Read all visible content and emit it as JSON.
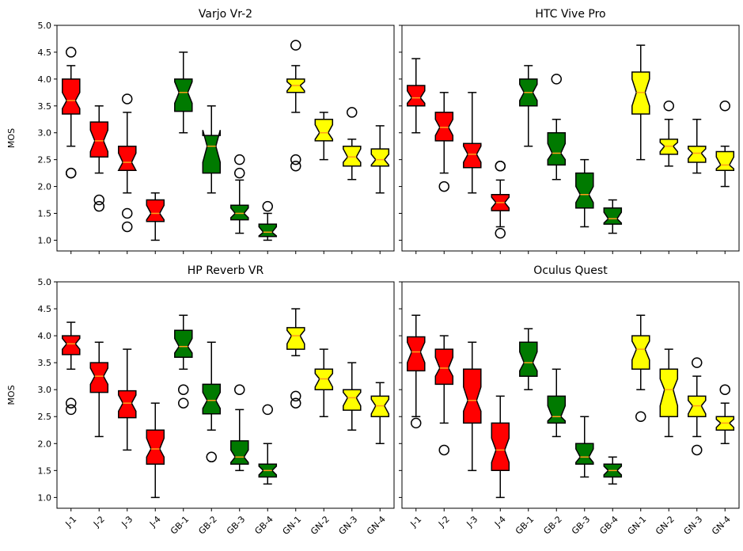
{
  "chart_data": {
    "type": "boxplot",
    "shared_ylabel": "MOS",
    "ylim": [
      0.8,
      5.0
    ],
    "yticks": [
      "1.0",
      "1.5",
      "2.0",
      "2.5",
      "3.0",
      "3.5",
      "4.0",
      "4.5",
      "5.0"
    ],
    "ytick_values": [
      1.0,
      1.5,
      2.0,
      2.5,
      3.0,
      3.5,
      4.0,
      4.5,
      5.0
    ],
    "categories": [
      "J-1",
      "J-2",
      "J-3",
      "J-4",
      "GB-1",
      "GB-2",
      "GB-3",
      "GB-4",
      "GN-1",
      "GN-2",
      "GN-3",
      "GN-4"
    ],
    "category_colors": [
      "#ff0000",
      "#ff0000",
      "#ff0000",
      "#ff0000",
      "#007a00",
      "#007a00",
      "#007a00",
      "#007a00",
      "#ffff00",
      "#ffff00",
      "#ffff00",
      "#ffff00"
    ],
    "median_color": "#ff9f1a",
    "panels": [
      {
        "title": "Varjo Vr-2",
        "boxes": [
          {
            "min": 2.75,
            "q1": 3.35,
            "median": 3.6,
            "q3": 4.0,
            "max": 4.25,
            "nlo": 3.45,
            "nhi": 3.75,
            "fliers": [
              4.5,
              2.25,
              2.25
            ]
          },
          {
            "min": 2.25,
            "q1": 2.55,
            "median": 2.85,
            "q3": 3.2,
            "max": 3.5,
            "nlo": 2.65,
            "nhi": 3.05,
            "fliers": [
              1.75,
              1.63
            ]
          },
          {
            "min": 1.88,
            "q1": 2.3,
            "median": 2.45,
            "q3": 2.75,
            "max": 3.38,
            "nlo": 2.3,
            "nhi": 2.62,
            "fliers": [
              3.63,
              1.5,
              1.25
            ]
          },
          {
            "min": 1.0,
            "q1": 1.35,
            "median": 1.5,
            "q3": 1.75,
            "max": 1.88,
            "nlo": 1.38,
            "nhi": 1.65,
            "fliers": []
          },
          {
            "min": 3.0,
            "q1": 3.4,
            "median": 3.75,
            "q3": 4.0,
            "max": 4.5,
            "nlo": 3.55,
            "nhi": 3.95,
            "fliers": []
          },
          {
            "min": 1.88,
            "q1": 2.25,
            "median": 2.75,
            "q3": 2.95,
            "max": 3.5,
            "nlo": 2.45,
            "nhi": 3.05,
            "fliers": []
          },
          {
            "min": 1.13,
            "q1": 1.38,
            "median": 1.5,
            "q3": 1.65,
            "max": 2.12,
            "nlo": 1.42,
            "nhi": 1.6,
            "fliers": [
              2.5,
              2.25
            ]
          },
          {
            "min": 1.0,
            "q1": 1.07,
            "median": 1.15,
            "q3": 1.3,
            "max": 1.5,
            "nlo": 1.08,
            "nhi": 1.25,
            "fliers": [
              1.63
            ]
          },
          {
            "min": 3.38,
            "q1": 3.75,
            "median": 3.88,
            "q3": 4.0,
            "max": 4.25,
            "nlo": 3.78,
            "nhi": 3.95,
            "fliers": [
              4.63,
              2.5,
              2.38
            ]
          },
          {
            "min": 2.5,
            "q1": 2.85,
            "median": 3.0,
            "q3": 3.25,
            "max": 3.38,
            "nlo": 2.88,
            "nhi": 3.15,
            "fliers": []
          },
          {
            "min": 2.13,
            "q1": 2.38,
            "median": 2.55,
            "q3": 2.75,
            "max": 2.88,
            "nlo": 2.45,
            "nhi": 2.7,
            "fliers": [
              3.38
            ]
          },
          {
            "min": 1.88,
            "q1": 2.38,
            "median": 2.5,
            "q3": 2.7,
            "max": 3.13,
            "nlo": 2.4,
            "nhi": 2.6,
            "fliers": []
          }
        ]
      },
      {
        "title": "HTC Vive Pro",
        "boxes": [
          {
            "min": 3.0,
            "q1": 3.5,
            "median": 3.65,
            "q3": 3.88,
            "max": 4.38,
            "nlo": 3.55,
            "nhi": 3.78,
            "fliers": []
          },
          {
            "min": 2.25,
            "q1": 2.85,
            "median": 3.1,
            "q3": 3.38,
            "max": 3.75,
            "nlo": 2.95,
            "nhi": 3.25,
            "fliers": [
              2.0
            ]
          },
          {
            "min": 1.88,
            "q1": 2.35,
            "median": 2.6,
            "q3": 2.8,
            "max": 3.75,
            "nlo": 2.45,
            "nhi": 2.75,
            "fliers": []
          },
          {
            "min": 1.25,
            "q1": 1.55,
            "median": 1.7,
            "q3": 1.85,
            "max": 2.12,
            "nlo": 1.6,
            "nhi": 1.8,
            "fliers": [
              2.38,
              2.38,
              1.13
            ]
          },
          {
            "min": 2.75,
            "q1": 3.5,
            "median": 3.75,
            "q3": 4.0,
            "max": 4.25,
            "nlo": 3.6,
            "nhi": 3.9,
            "fliers": []
          },
          {
            "min": 2.13,
            "q1": 2.4,
            "median": 2.62,
            "q3": 3.0,
            "max": 3.25,
            "nlo": 2.5,
            "nhi": 2.8,
            "fliers": [
              4.0
            ]
          },
          {
            "min": 1.25,
            "q1": 1.6,
            "median": 1.85,
            "q3": 2.25,
            "max": 2.5,
            "nlo": 1.7,
            "nhi": 2.0,
            "fliers": []
          },
          {
            "min": 1.13,
            "q1": 1.3,
            "median": 1.4,
            "q3": 1.6,
            "max": 1.75,
            "nlo": 1.32,
            "nhi": 1.52,
            "fliers": []
          },
          {
            "min": 2.5,
            "q1": 3.35,
            "median": 3.75,
            "q3": 4.13,
            "max": 4.63,
            "nlo": 3.5,
            "nhi": 4.0,
            "fliers": []
          },
          {
            "min": 2.38,
            "q1": 2.6,
            "median": 2.75,
            "q3": 2.88,
            "max": 3.25,
            "nlo": 2.65,
            "nhi": 2.82,
            "fliers": [
              3.5
            ]
          },
          {
            "min": 2.25,
            "q1": 2.45,
            "median": 2.62,
            "q3": 2.75,
            "max": 3.25,
            "nlo": 2.52,
            "nhi": 2.7,
            "fliers": []
          },
          {
            "min": 2.0,
            "q1": 2.3,
            "median": 2.4,
            "q3": 2.65,
            "max": 2.75,
            "nlo": 2.33,
            "nhi": 2.55,
            "fliers": [
              3.5
            ]
          }
        ]
      },
      {
        "title": "HP Reverb VR",
        "boxes": [
          {
            "min": 3.38,
            "q1": 3.65,
            "median": 3.85,
            "q3": 4.0,
            "max": 4.25,
            "nlo": 3.75,
            "nhi": 3.95,
            "fliers": [
              2.75,
              2.63
            ]
          },
          {
            "min": 2.13,
            "q1": 2.95,
            "median": 3.25,
            "q3": 3.5,
            "max": 3.88,
            "nlo": 3.1,
            "nhi": 3.4,
            "fliers": []
          },
          {
            "min": 1.88,
            "q1": 2.48,
            "median": 2.75,
            "q3": 2.98,
            "max": 3.75,
            "nlo": 2.6,
            "nhi": 2.9,
            "fliers": []
          },
          {
            "min": 1.0,
            "q1": 1.62,
            "median": 1.9,
            "q3": 2.25,
            "max": 2.75,
            "nlo": 1.75,
            "nhi": 2.1,
            "fliers": []
          },
          {
            "min": 3.38,
            "q1": 3.6,
            "median": 3.8,
            "q3": 4.1,
            "max": 4.38,
            "nlo": 3.68,
            "nhi": 3.95,
            "fliers": [
              3.0,
              2.75
            ]
          },
          {
            "min": 2.25,
            "q1": 2.55,
            "median": 2.8,
            "q3": 3.1,
            "max": 3.88,
            "nlo": 2.65,
            "nhi": 2.95,
            "fliers": [
              1.75
            ]
          },
          {
            "min": 1.5,
            "q1": 1.62,
            "median": 1.75,
            "q3": 2.05,
            "max": 2.63,
            "nlo": 1.65,
            "nhi": 1.88,
            "fliers": [
              3.0
            ]
          },
          {
            "min": 1.25,
            "q1": 1.38,
            "median": 1.5,
            "q3": 1.62,
            "max": 2.0,
            "nlo": 1.42,
            "nhi": 1.58,
            "fliers": [
              2.63
            ]
          },
          {
            "min": 3.63,
            "q1": 3.75,
            "median": 4.0,
            "q3": 4.15,
            "max": 4.5,
            "nlo": 3.85,
            "nhi": 4.1,
            "fliers": [
              2.88,
              2.75
            ]
          },
          {
            "min": 2.5,
            "q1": 3.0,
            "median": 3.2,
            "q3": 3.38,
            "max": 3.75,
            "nlo": 3.05,
            "nhi": 3.3,
            "fliers": []
          },
          {
            "min": 2.25,
            "q1": 2.62,
            "median": 2.85,
            "q3": 3.0,
            "max": 3.5,
            "nlo": 2.7,
            "nhi": 2.95,
            "fliers": []
          },
          {
            "min": 2.0,
            "q1": 2.5,
            "median": 2.7,
            "q3": 2.88,
            "max": 3.13,
            "nlo": 2.55,
            "nhi": 2.82,
            "fliers": []
          }
        ]
      },
      {
        "title": "Oculus Quest",
        "boxes": [
          {
            "min": 2.5,
            "q1": 3.35,
            "median": 3.7,
            "q3": 3.98,
            "max": 4.38,
            "nlo": 3.5,
            "nhi": 3.88,
            "fliers": [
              2.38
            ]
          },
          {
            "min": 2.38,
            "q1": 3.1,
            "median": 3.4,
            "q3": 3.75,
            "max": 4.0,
            "nlo": 3.25,
            "nhi": 3.6,
            "fliers": [
              1.88
            ]
          },
          {
            "min": 1.5,
            "q1": 2.38,
            "median": 2.8,
            "q3": 3.38,
            "max": 3.88,
            "nlo": 2.6,
            "nhi": 3.05,
            "fliers": []
          },
          {
            "min": 1.0,
            "q1": 1.5,
            "median": 1.88,
            "q3": 2.38,
            "max": 2.88,
            "nlo": 1.65,
            "nhi": 2.1,
            "fliers": []
          },
          {
            "min": 3.0,
            "q1": 3.25,
            "median": 3.5,
            "q3": 3.88,
            "max": 4.13,
            "nlo": 3.35,
            "nhi": 3.7,
            "fliers": []
          },
          {
            "min": 2.13,
            "q1": 2.38,
            "median": 2.5,
            "q3": 2.88,
            "max": 3.38,
            "nlo": 2.42,
            "nhi": 2.7,
            "fliers": []
          },
          {
            "min": 1.38,
            "q1": 1.62,
            "median": 1.75,
            "q3": 2.0,
            "max": 2.5,
            "nlo": 1.65,
            "nhi": 1.9,
            "fliers": []
          },
          {
            "min": 1.25,
            "q1": 1.38,
            "median": 1.5,
            "q3": 1.62,
            "max": 1.75,
            "nlo": 1.42,
            "nhi": 1.58,
            "fliers": []
          },
          {
            "min": 3.0,
            "q1": 3.38,
            "median": 3.75,
            "q3": 4.0,
            "max": 4.38,
            "nlo": 3.55,
            "nhi": 3.9,
            "fliers": [
              2.5
            ]
          },
          {
            "min": 2.13,
            "q1": 2.5,
            "median": 3.0,
            "q3": 3.38,
            "max": 3.75,
            "nlo": 2.7,
            "nhi": 3.2,
            "fliers": []
          },
          {
            "min": 2.13,
            "q1": 2.5,
            "median": 2.7,
            "q3": 2.88,
            "max": 3.25,
            "nlo": 2.55,
            "nhi": 2.8,
            "fliers": [
              3.5,
              1.88
            ]
          },
          {
            "min": 2.0,
            "q1": 2.25,
            "median": 2.38,
            "q3": 2.5,
            "max": 2.75,
            "nlo": 2.3,
            "nhi": 2.45,
            "fliers": [
              3.0
            ]
          }
        ]
      }
    ]
  }
}
